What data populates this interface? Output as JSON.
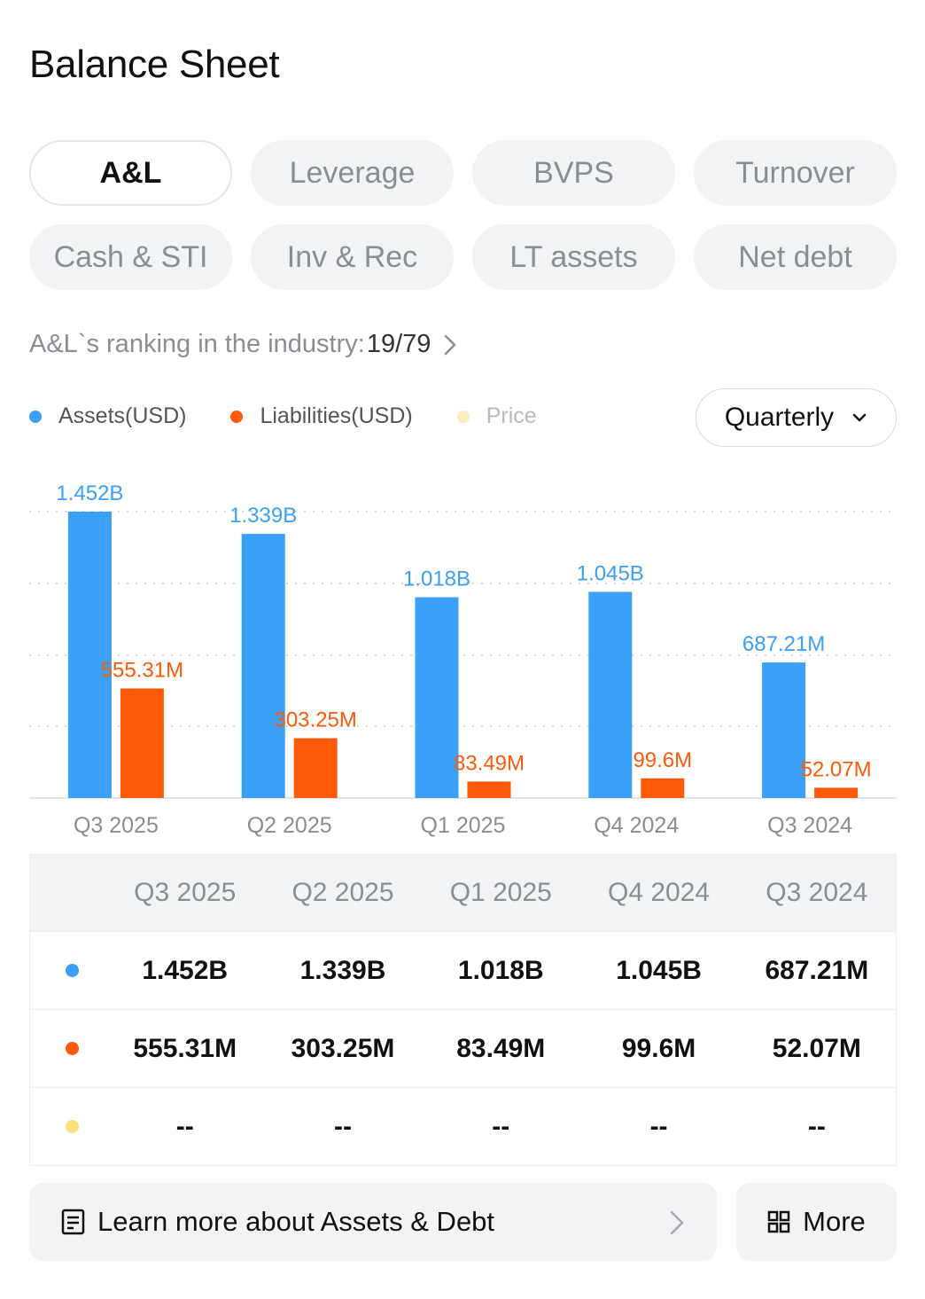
{
  "header": {
    "title": "Balance Sheet"
  },
  "tabs": [
    {
      "label": "A&L",
      "active": true
    },
    {
      "label": "Leverage",
      "active": false
    },
    {
      "label": "BVPS",
      "active": false
    },
    {
      "label": "Turnover",
      "active": false
    },
    {
      "label": "Cash & STI",
      "active": false
    },
    {
      "label": "Inv & Rec",
      "active": false
    },
    {
      "label": "LT assets",
      "active": false
    },
    {
      "label": "Net debt",
      "active": false
    }
  ],
  "ranking": {
    "label": "A&L`s ranking in the industry:",
    "value": "19/79"
  },
  "legend": [
    {
      "label": "Assets(USD)",
      "color": "#3aa0f8"
    },
    {
      "label": "Liabilities(USD)",
      "color": "#ff5a0a"
    },
    {
      "label": "Price",
      "color": "#fdeebd"
    }
  ],
  "period": {
    "selected": "Quarterly"
  },
  "colors": {
    "assets": "#3aa0f8",
    "liabilities": "#ff5a0a",
    "price": "#fbe27a",
    "grid": "#d7d9dd"
  },
  "chart_data": {
    "type": "bar",
    "categories": [
      "Q3 2025",
      "Q2 2025",
      "Q1 2025",
      "Q4 2024",
      "Q3 2024"
    ],
    "series": [
      {
        "name": "Assets(USD)",
        "values": [
          1452,
          1339,
          1018,
          1045,
          687.21
        ],
        "labels": [
          "1.452B",
          "1.339B",
          "1.018B",
          "1.045B",
          "687.21M"
        ]
      },
      {
        "name": "Liabilities(USD)",
        "values": [
          555.31,
          303.25,
          83.49,
          99.6,
          52.07
        ],
        "labels": [
          "555.31M",
          "303.25M",
          "83.49M",
          "99.6M",
          "52.07M"
        ]
      }
    ],
    "unit": "M USD",
    "ylim": [
      0,
      1452
    ],
    "grid": true
  },
  "table": {
    "headers": [
      "Q3 2025",
      "Q2 2025",
      "Q1 2025",
      "Q4 2024",
      "Q3 2024"
    ],
    "rows": [
      {
        "series": "assets",
        "values": [
          "1.452B",
          "1.339B",
          "1.018B",
          "1.045B",
          "687.21M"
        ]
      },
      {
        "series": "liabilities",
        "values": [
          "555.31M",
          "303.25M",
          "83.49M",
          "99.6M",
          "52.07M"
        ]
      },
      {
        "series": "price",
        "values": [
          "--",
          "--",
          "--",
          "--",
          "--"
        ]
      }
    ]
  },
  "footer": {
    "learn_label": "Learn more about Assets & Debt",
    "more_label": "More"
  }
}
